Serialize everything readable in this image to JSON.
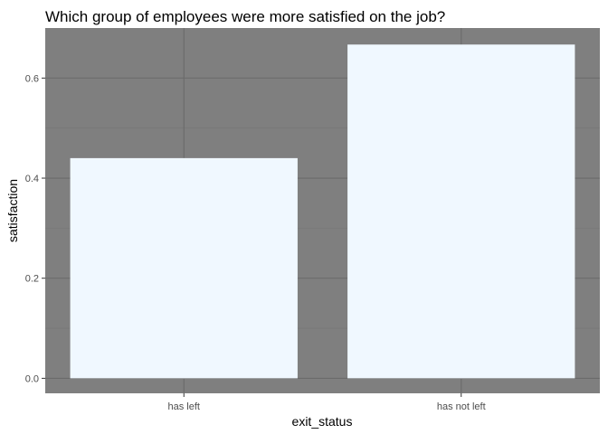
{
  "chart_data": {
    "type": "bar",
    "title": "Which group of employees were more satisfied on the job?",
    "xlabel": "exit_status",
    "ylabel": "satisfaction",
    "categories": [
      "has left",
      "has not left"
    ],
    "values": [
      0.44,
      0.667
    ],
    "ylim": [
      -0.03,
      0.7
    ],
    "yticks": [
      "0.0",
      "0.2",
      "0.4",
      "0.6"
    ],
    "ytick_values": [
      0.0,
      0.2,
      0.4,
      0.6
    ],
    "yminor_values": [
      0.1,
      0.3,
      0.5
    ],
    "grid": true,
    "legend": "none",
    "colors": {
      "panel_background": "#7f7f7f",
      "grid_major": "#6b6b6b",
      "grid_minor": "#757575",
      "bar_fill": "#f0f8ff",
      "tick_label": "#4d4d4d"
    }
  }
}
